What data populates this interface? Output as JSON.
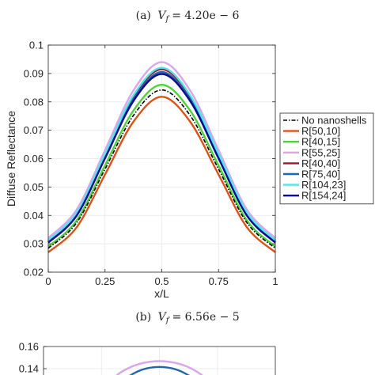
{
  "chart_data": [
    {
      "type": "line",
      "panel_label": "(a)",
      "title_var": "V",
      "title_sub": "f",
      "title_value": "= 4.20e − 6",
      "xlabel": "x/L",
      "ylabel": "Diffuse Reflectance",
      "xlim": [
        0,
        1
      ],
      "ylim": [
        0.02,
        0.1
      ],
      "xticks": [
        0,
        0.25,
        0.5,
        0.75,
        1
      ],
      "xtick_labels": [
        "0",
        "0.25",
        "0.5",
        "0.75",
        "1"
      ],
      "yticks": [
        0.02,
        0.03,
        0.04,
        0.05,
        0.06,
        0.07,
        0.08,
        0.09,
        0.1
      ],
      "ytick_labels": [
        "0.02",
        "0.03",
        "0.04",
        "0.05",
        "0.06",
        "0.07",
        "0.08",
        "0.09",
        "0.1"
      ],
      "grid": true,
      "legend_position": "right",
      "series": [
        {
          "name": "No nanoshells",
          "color": "#000000",
          "dash": "dashdot",
          "x": [
            0,
            0.125,
            0.25,
            0.375,
            0.5,
            0.625,
            0.75,
            0.875,
            1
          ],
          "values": [
            0.0284,
            0.0374,
            0.0563,
            0.0752,
            0.0842,
            0.0752,
            0.0563,
            0.0374,
            0.0284
          ]
        },
        {
          "name": "R[50,10]",
          "color": "#d95319",
          "dash": "solid",
          "x": [
            0,
            0.125,
            0.25,
            0.375,
            0.5,
            0.625,
            0.75,
            0.875,
            1
          ],
          "values": [
            0.027,
            0.0358,
            0.0544,
            0.073,
            0.0818,
            0.073,
            0.0544,
            0.0358,
            0.027
          ]
        },
        {
          "name": "R[40,15]",
          "color": "#4fd13a",
          "dash": "solid",
          "x": [
            0,
            0.125,
            0.25,
            0.375,
            0.5,
            0.625,
            0.75,
            0.875,
            1
          ],
          "values": [
            0.029,
            0.0382,
            0.0576,
            0.0769,
            0.086,
            0.0769,
            0.0576,
            0.0382,
            0.029
          ]
        },
        {
          "name": "R[55,25]",
          "color": "#d9a6e9",
          "dash": "solid",
          "x": [
            0,
            0.125,
            0.25,
            0.375,
            0.5,
            0.625,
            0.75,
            0.875,
            1
          ],
          "values": [
            0.032,
            0.042,
            0.063,
            0.084,
            0.094,
            0.084,
            0.063,
            0.042,
            0.032
          ]
        },
        {
          "name": "R[40,40]",
          "color": "#a2142f",
          "dash": "solid",
          "x": [
            0,
            0.125,
            0.25,
            0.375,
            0.5,
            0.625,
            0.75,
            0.875,
            1
          ],
          "values": [
            0.031,
            0.0407,
            0.0612,
            0.0818,
            0.0915,
            0.0818,
            0.0612,
            0.0407,
            0.031
          ]
        },
        {
          "name": "R[75,40]",
          "color": "#2166ac",
          "dash": "solid",
          "x": [
            0,
            0.125,
            0.25,
            0.375,
            0.5,
            0.625,
            0.75,
            0.875,
            1
          ],
          "values": [
            0.0306,
            0.0402,
            0.0606,
            0.0809,
            0.0905,
            0.0809,
            0.0606,
            0.0402,
            0.0306
          ]
        },
        {
          "name": "R[104,23]",
          "color": "#4ee6ee",
          "dash": "solid",
          "x": [
            0,
            0.125,
            0.25,
            0.375,
            0.5,
            0.625,
            0.75,
            0.875,
            1
          ],
          "values": [
            0.0312,
            0.041,
            0.0617,
            0.0823,
            0.092,
            0.0823,
            0.0617,
            0.041,
            0.0312
          ]
        },
        {
          "name": "R[154,24]",
          "color": "#0a0a8a",
          "dash": "solid",
          "x": [
            0,
            0.125,
            0.25,
            0.375,
            0.5,
            0.625,
            0.75,
            0.875,
            1
          ],
          "values": [
            0.0304,
            0.0399,
            0.0601,
            0.0803,
            0.0898,
            0.0803,
            0.0601,
            0.0399,
            0.0304
          ]
        }
      ]
    },
    {
      "type": "line",
      "panel_label": "(b)",
      "title_var": "V",
      "title_sub": "f",
      "title_value": "= 6.56e − 5",
      "yticks": [
        0.14,
        0.16
      ],
      "ytick_labels": [
        "0.14",
        "0.16"
      ],
      "ylim": [
        0.14,
        0.16
      ],
      "partially_visible": true,
      "series": [
        {
          "name": "R[55,25]",
          "color": "#d9a6e9",
          "peak": 0.155
        },
        {
          "name": "R[75,40]",
          "color": "#2166ac",
          "peak": 0.148
        }
      ]
    }
  ]
}
